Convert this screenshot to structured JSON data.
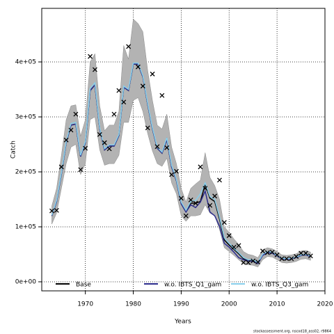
{
  "chart_data": {
    "type": "line",
    "xlabel": "Years",
    "ylabel": "Catch",
    "footnote": "stockassessment.org, nscod18_ass02, r9864",
    "x": [
      1963,
      1964,
      1965,
      1966,
      1967,
      1968,
      1969,
      1970,
      1971,
      1972,
      1973,
      1974,
      1975,
      1976,
      1977,
      1978,
      1979,
      1980,
      1981,
      1982,
      1983,
      1984,
      1985,
      1986,
      1987,
      1988,
      1989,
      1990,
      1991,
      1992,
      1993,
      1994,
      1995,
      1996,
      1997,
      1998,
      1999,
      2000,
      2001,
      2002,
      2003,
      2004,
      2005,
      2006,
      2007,
      2008,
      2009,
      2010,
      2011,
      2012,
      2013,
      2014,
      2015,
      2016,
      2017
    ],
    "series": [
      {
        "name": "Base",
        "color": "#000000",
        "values": [
          120000,
          146000,
          196000,
          253000,
          285000,
          287000,
          228000,
          253000,
          348000,
          358000,
          278000,
          240000,
          247000,
          247000,
          266000,
          354000,
          348000,
          396000,
          396000,
          373000,
          323000,
          278000,
          243000,
          234000,
          259000,
          209000,
          184000,
          142000,
          127000,
          143000,
          143000,
          146000,
          177000,
          152000,
          146000,
          114000,
          76000,
          67000,
          59000,
          51000,
          42000,
          39000,
          39000,
          34000,
          49000,
          54000,
          53000,
          47000,
          42000,
          41000,
          42000,
          44000,
          48000,
          49000,
          46000
        ]
      },
      {
        "name": "w.o. IBTS_Q1_gam",
        "color": "#2b2b8c",
        "values": [
          120000,
          146000,
          196000,
          253000,
          285000,
          287000,
          228000,
          253000,
          348000,
          358000,
          278000,
          240000,
          247000,
          247000,
          266000,
          354000,
          348000,
          396000,
          396000,
          373000,
          323000,
          278000,
          243000,
          234000,
          259000,
          209000,
          184000,
          142000,
          127000,
          140000,
          135000,
          145000,
          165000,
          127000,
          120000,
          101000,
          70000,
          63000,
          54000,
          44000,
          40000,
          38000,
          37000,
          33000,
          48000,
          53000,
          52000,
          47000,
          42000,
          41000,
          42000,
          44000,
          48000,
          49000,
          46000
        ]
      },
      {
        "name": "w.o. IBTS_Q3_gam",
        "color": "#87ceeb",
        "values": [
          121000,
          148000,
          198000,
          255000,
          288000,
          290000,
          230000,
          255000,
          352000,
          362000,
          280000,
          242000,
          249000,
          249000,
          268000,
          356000,
          350000,
          398000,
          398000,
          375000,
          325000,
          280000,
          245000,
          236000,
          262000,
          212000,
          186000,
          145000,
          130000,
          146000,
          148000,
          160000,
          180000,
          155000,
          150000,
          118000,
          80000,
          70000,
          61000,
          53000,
          44000,
          40000,
          40000,
          35000,
          50000,
          55000,
          54000,
          48000,
          43000,
          42000,
          43000,
          45000,
          49000,
          50000,
          47000
        ]
      }
    ],
    "band": {
      "color": "#b3b3b3",
      "upper": [
        138000,
        170000,
        230000,
        295000,
        320000,
        322000,
        265000,
        295000,
        400000,
        415000,
        320000,
        275000,
        285000,
        285000,
        310000,
        430000,
        405000,
        478000,
        470000,
        455000,
        385000,
        330000,
        285000,
        278000,
        305000,
        245000,
        215000,
        170000,
        145000,
        170000,
        178000,
        185000,
        235000,
        190000,
        175000,
        150000,
        100000,
        90000,
        78000,
        68000,
        55000,
        50000,
        48000,
        44000,
        58000,
        62000,
        60000,
        55000,
        49000,
        48000,
        49000,
        51000,
        56000,
        57000,
        54000
      ],
      "lower": [
        105000,
        125000,
        170000,
        215000,
        245000,
        250000,
        195000,
        215000,
        295000,
        300000,
        240000,
        212000,
        215000,
        215000,
        230000,
        290000,
        290000,
        330000,
        335000,
        310000,
        270000,
        238000,
        215000,
        210000,
        225000,
        180000,
        160000,
        120000,
        110000,
        120000,
        120000,
        122000,
        140000,
        125000,
        120000,
        95000,
        62000,
        55000,
        48000,
        40000,
        33000,
        31000,
        30000,
        27000,
        40000,
        46000,
        45000,
        40000,
        35000,
        34000,
        35000,
        37000,
        41000,
        42000,
        39000
      ]
    },
    "observed": {
      "color": "#000000",
      "values": [
        129000,
        130000,
        209000,
        258000,
        276000,
        305000,
        204000,
        243000,
        410000,
        386000,
        268000,
        253000,
        242000,
        305000,
        348000,
        327000,
        428000,
        null,
        391000,
        356000,
        280000,
        378000,
        246000,
        339000,
        244000,
        195000,
        201000,
        152000,
        120000,
        149000,
        143000,
        209000,
        170000,
        139000,
        156000,
        185000,
        108000,
        84000,
        63000,
        66000,
        35000,
        35000,
        38000,
        36000,
        56000,
        53000,
        54000,
        49000,
        42000,
        42000,
        42000,
        46000,
        52000,
        52000,
        47000
      ]
    },
    "xlim": [
      1960.9,
      2020
    ],
    "ylim": [
      -16500,
      497500
    ],
    "xticks": [
      1970,
      1980,
      1990,
      2000,
      2010,
      2020
    ],
    "yticks": [
      {
        "value": 0,
        "label": "0e+00"
      },
      {
        "value": 100000,
        "label": "1e+05"
      },
      {
        "value": 200000,
        "label": "2e+05"
      },
      {
        "value": 300000,
        "label": "3e+05"
      },
      {
        "value": 400000,
        "label": "4e+05"
      }
    ],
    "grid": true,
    "legend": "bottom"
  }
}
